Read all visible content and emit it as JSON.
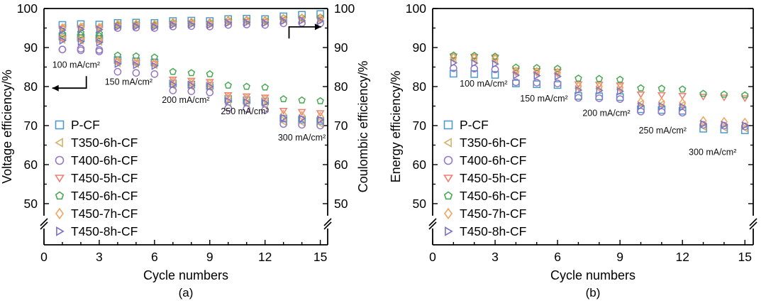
{
  "figure": {
    "background": "#ffffff",
    "panels": [
      "(a)",
      "(b)"
    ]
  },
  "chart_data": [
    {
      "type": "scatter",
      "panel_label": "(a)",
      "ylabel_left": "Voltage efficiency/%",
      "ylabel_right": "Coulombic efficiency/%",
      "xlabel": "Cycle numbers",
      "xlim": [
        0,
        15.4
      ],
      "ylim": [
        50,
        100
      ],
      "axis_break": true,
      "x_ticks": [
        0,
        3,
        6,
        9,
        12,
        15
      ],
      "y_ticks": [
        50,
        60,
        70,
        80,
        90,
        100
      ],
      "x": [
        1,
        2,
        3,
        4,
        5,
        6,
        7,
        8,
        9,
        10,
        11,
        12,
        13,
        14,
        15
      ],
      "layout": {
        "left": 62,
        "right": 462,
        "right_tick_labels": true
      },
      "series": [
        {
          "name": "P-CF",
          "marker": "square",
          "color": "#4e9ac9",
          "left_values": [
            92.8,
            92.5,
            92.3,
            86.8,
            86.5,
            86.2,
            80.8,
            80.5,
            80.2,
            76.8,
            76.5,
            76.2,
            71.8,
            71.5,
            71.2
          ],
          "right_values": [
            95.8,
            96.0,
            95.9,
            96.3,
            96.4,
            96.3,
            96.8,
            96.9,
            96.8,
            97.3,
            97.4,
            97.3,
            98.0,
            98.4,
            98.6
          ]
        },
        {
          "name": "T350-6h-CF",
          "marker": "triangle-left",
          "color": "#d6b36e",
          "left_values": [
            92.0,
            91.8,
            91.5,
            86.0,
            85.8,
            85.5,
            80.2,
            80.0,
            79.7,
            75.8,
            75.5,
            75.2,
            71.0,
            70.8,
            70.5
          ],
          "right_values": [
            95.2,
            95.4,
            95.3,
            95.8,
            95.9,
            95.8,
            96.2,
            96.3,
            96.2,
            96.7,
            96.8,
            96.7,
            97.2,
            97.3,
            97.4
          ]
        },
        {
          "name": "T400-6h-CF",
          "marker": "circle",
          "color": "#9678c1",
          "left_values": [
            89.5,
            89.3,
            89.0,
            83.8,
            83.5,
            83.2,
            79.0,
            78.8,
            78.5,
            74.5,
            74.3,
            74.0,
            70.4,
            70.2,
            70.0
          ],
          "right_values": [
            89.5,
            89.7,
            89.4,
            95.0,
            95.1,
            95.0,
            95.4,
            95.5,
            95.4,
            95.8,
            95.9,
            95.8,
            96.2,
            96.3,
            96.2
          ]
        },
        {
          "name": "T450-5h-CF",
          "marker": "triangle-down",
          "color": "#ee7e72",
          "left_values": [
            92.3,
            92.0,
            91.8,
            86.3,
            86.0,
            85.8,
            81.8,
            81.5,
            81.2,
            77.8,
            77.5,
            77.2,
            73.8,
            73.5,
            73.2
          ],
          "right_values": [
            94.8,
            95.0,
            94.9,
            95.5,
            95.6,
            95.5,
            96.0,
            96.1,
            96.0,
            96.5,
            96.6,
            96.5,
            97.0,
            97.1,
            97.0
          ]
        },
        {
          "name": "T450-6h-CF",
          "marker": "pentagon",
          "color": "#4aa753",
          "left_values": [
            93.5,
            93.2,
            93.0,
            88.0,
            87.8,
            87.5,
            83.8,
            83.5,
            83.2,
            80.3,
            80.0,
            79.8,
            76.8,
            76.5,
            76.3
          ],
          "right_values": [
            93.5,
            93.8,
            93.6,
            95.7,
            95.8,
            95.7,
            96.3,
            96.4,
            96.3,
            96.9,
            97.0,
            96.9,
            97.5,
            97.6,
            97.7
          ]
        },
        {
          "name": "T450-7h-CF",
          "marker": "diamond",
          "color": "#f0a562",
          "left_values": [
            92.5,
            92.2,
            92.0,
            86.5,
            86.3,
            86.0,
            81.3,
            81.0,
            80.8,
            77.3,
            77.0,
            76.8,
            72.8,
            72.5,
            72.3
          ],
          "right_values": [
            95.0,
            95.2,
            95.1,
            95.9,
            96.0,
            95.9,
            96.4,
            96.5,
            96.4,
            96.9,
            97.0,
            96.9,
            97.4,
            97.5,
            97.5
          ]
        },
        {
          "name": "T450-8h-CF",
          "marker": "triangle-right",
          "color": "#7a72c2",
          "left_values": [
            91.8,
            91.5,
            91.3,
            85.8,
            85.5,
            85.3,
            80.5,
            80.3,
            80.0,
            76.3,
            76.0,
            75.8,
            72.0,
            71.8,
            71.5
          ],
          "right_values": [
            94.5,
            94.7,
            94.6,
            95.3,
            95.4,
            95.3,
            95.8,
            95.9,
            95.8,
            96.3,
            96.4,
            96.3,
            96.8,
            96.9,
            96.8
          ]
        }
      ],
      "annotations": [
        {
          "text": "100 mA/cm²",
          "x": 0.45,
          "y": 84.8
        },
        {
          "text": "150 mA/cm²",
          "x": 3.3,
          "y": 80.5
        },
        {
          "text": "200 mA/cm²",
          "x": 6.4,
          "y": 75.8
        },
        {
          "text": "250 mA/cm²",
          "x": 9.6,
          "y": 72.9
        },
        {
          "text": "300 mA/cm²",
          "x": 12.7,
          "y": 66.2
        }
      ],
      "arrows": [
        {
          "points": [
            [
              2.3,
              82.7
            ],
            [
              2.3,
              79.6
            ],
            [
              0.45,
              79.6
            ]
          ],
          "head": "left"
        },
        {
          "points": [
            [
              13.3,
              92.3
            ],
            [
              13.3,
              95.3
            ],
            [
              15.05,
              95.3
            ]
          ],
          "head": "right"
        }
      ]
    },
    {
      "type": "scatter",
      "panel_label": "(b)",
      "ylabel_left": "Energy efficiency/%",
      "xlabel": "Cycle numbers",
      "xlim": [
        0,
        15.4
      ],
      "ylim": [
        50,
        100
      ],
      "axis_break": true,
      "x_ticks": [
        0,
        3,
        6,
        9,
        12,
        15
      ],
      "y_ticks": [
        50,
        60,
        70,
        80,
        90,
        100
      ],
      "x": [
        1,
        2,
        3,
        4,
        5,
        6,
        7,
        8,
        9,
        10,
        11,
        12,
        13,
        14,
        15
      ],
      "layout": {
        "left": 70,
        "right": 522,
        "right_tick_labels": false
      },
      "series": [
        {
          "name": "P-CF",
          "marker": "square",
          "color": "#4e9ac9",
          "left_values": [
            83.3,
            83.2,
            83.0,
            80.8,
            80.6,
            80.4,
            77.6,
            77.5,
            77.3,
            74.2,
            74.0,
            73.8,
            69.2,
            69.0,
            68.8
          ]
        },
        {
          "name": "T350-6h-CF",
          "marker": "triangle-left",
          "color": "#d6b36e",
          "left_values": [
            86.9,
            86.8,
            86.6,
            83.6,
            83.5,
            83.3,
            79.6,
            79.5,
            79.3,
            75.6,
            75.5,
            75.3,
            69.7,
            69.5,
            69.3
          ]
        },
        {
          "name": "T400-6h-CF",
          "marker": "circle",
          "color": "#9678c1",
          "left_values": [
            84.7,
            84.6,
            84.4,
            81.1,
            81.0,
            80.8,
            77.1,
            77.0,
            76.8,
            73.6,
            73.5,
            73.3,
            70.2,
            70.0,
            69.8
          ]
        },
        {
          "name": "T450-5h-CF",
          "marker": "triangle-down",
          "color": "#ee7e72",
          "left_values": [
            87.7,
            87.6,
            87.4,
            84.1,
            84.0,
            83.8,
            80.6,
            80.5,
            80.3,
            78.0,
            77.8,
            77.6,
            77.4,
            77.2,
            77.0
          ]
        },
        {
          "name": "T450-6h-CF",
          "marker": "pentagon",
          "color": "#4aa753",
          "left_values": [
            88.0,
            87.9,
            87.7,
            84.9,
            84.8,
            84.6,
            82.1,
            82.0,
            81.8,
            79.6,
            79.5,
            79.3,
            78.2,
            78.0,
            77.8
          ]
        },
        {
          "name": "T450-7h-CF",
          "marker": "diamond",
          "color": "#f0a562",
          "left_values": [
            87.4,
            87.3,
            87.1,
            83.9,
            83.8,
            83.6,
            80.1,
            80.0,
            79.8,
            76.1,
            76.0,
            75.8,
            71.2,
            71.0,
            70.8
          ]
        },
        {
          "name": "T450-8h-CF",
          "marker": "triangle-right",
          "color": "#7a72c2",
          "left_values": [
            86.1,
            86.0,
            85.8,
            82.9,
            82.8,
            82.6,
            79.1,
            79.0,
            78.8,
            75.1,
            75.0,
            74.8,
            70.4,
            70.2,
            70.0
          ]
        }
      ],
      "annotations": [
        {
          "text": "100 mA/cm²",
          "x": 1.3,
          "y": 80.0
        },
        {
          "text": "150 mA/cm²",
          "x": 4.2,
          "y": 76.2
        },
        {
          "text": "200 mA/cm²",
          "x": 7.2,
          "y": 72.5
        },
        {
          "text": "250 mA/cm²",
          "x": 9.9,
          "y": 68.0
        },
        {
          "text": "300 mA/cm²",
          "x": 12.3,
          "y": 62.5
        }
      ],
      "arrows": []
    }
  ]
}
